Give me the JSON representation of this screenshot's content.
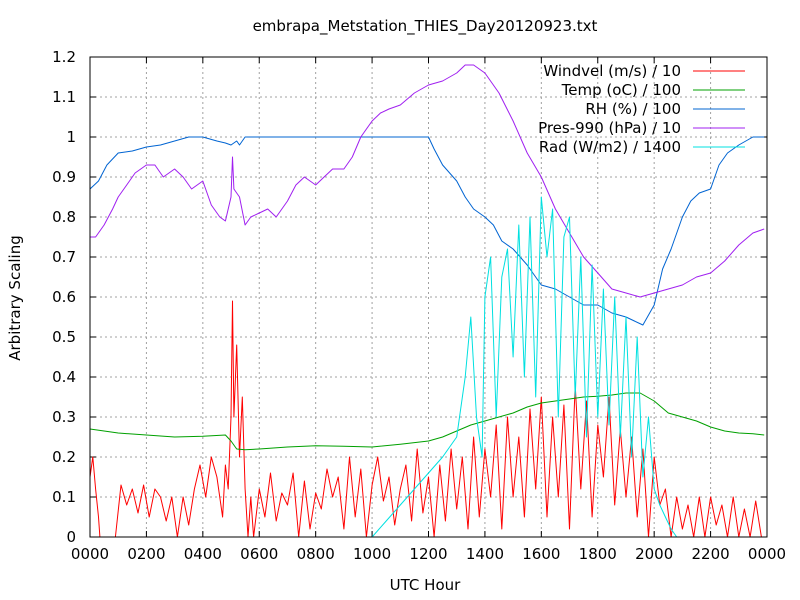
{
  "chart_data": {
    "type": "line",
    "title": "embrapa_Metstation_THIES_Day20120923.txt",
    "xlabel": "UTC Hour",
    "ylabel": "Arbitrary Scaling",
    "xlim": [
      0,
      24
    ],
    "ylim": [
      0,
      1.2
    ],
    "grid": true,
    "legend_position": "top-right",
    "x_ticks": [
      {
        "value": 0,
        "label": "0000"
      },
      {
        "value": 2,
        "label": "0200"
      },
      {
        "value": 4,
        "label": "0400"
      },
      {
        "value": 6,
        "label": "0600"
      },
      {
        "value": 8,
        "label": "0800"
      },
      {
        "value": 10,
        "label": "1000"
      },
      {
        "value": 12,
        "label": "1200"
      },
      {
        "value": 14,
        "label": "1400"
      },
      {
        "value": 16,
        "label": "1600"
      },
      {
        "value": 18,
        "label": "1800"
      },
      {
        "value": 20,
        "label": "2000"
      },
      {
        "value": 22,
        "label": "2200"
      },
      {
        "value": 24,
        "label": "0000"
      }
    ],
    "y_ticks": [
      {
        "value": 0,
        "label": "0"
      },
      {
        "value": 0.1,
        "label": "0.1"
      },
      {
        "value": 0.2,
        "label": "0.2"
      },
      {
        "value": 0.3,
        "label": "0.3"
      },
      {
        "value": 0.4,
        "label": "0.4"
      },
      {
        "value": 0.5,
        "label": "0.5"
      },
      {
        "value": 0.6,
        "label": "0.6"
      },
      {
        "value": 0.7,
        "label": "0.7"
      },
      {
        "value": 0.8,
        "label": "0.8"
      },
      {
        "value": 0.9,
        "label": "0.9"
      },
      {
        "value": 1.0,
        "label": "1"
      },
      {
        "value": 1.1,
        "label": "1.1"
      },
      {
        "value": 1.2,
        "label": "1.2"
      }
    ],
    "series": [
      {
        "name": "Windvel (m/s) / 10",
        "color": "#ff0000",
        "x": [
          0.0,
          0.1,
          0.2,
          0.3,
          0.35,
          0.5,
          0.7,
          0.9,
          1.1,
          1.3,
          1.5,
          1.7,
          1.9,
          2.1,
          2.3,
          2.5,
          2.7,
          2.9,
          3.1,
          3.3,
          3.5,
          3.7,
          3.9,
          4.1,
          4.3,
          4.5,
          4.7,
          4.8,
          4.9,
          5.0,
          5.05,
          5.1,
          5.2,
          5.3,
          5.4,
          5.5,
          5.6,
          5.7,
          5.8,
          6.0,
          6.2,
          6.4,
          6.6,
          6.8,
          7.0,
          7.2,
          7.4,
          7.6,
          7.8,
          8.0,
          8.2,
          8.4,
          8.6,
          8.8,
          9.0,
          9.2,
          9.4,
          9.6,
          9.8,
          10.0,
          10.2,
          10.4,
          10.6,
          10.8,
          11.0,
          11.2,
          11.4,
          11.6,
          11.8,
          12.0,
          12.2,
          12.4,
          12.6,
          12.8,
          13.0,
          13.2,
          13.4,
          13.6,
          13.8,
          14.0,
          14.2,
          14.4,
          14.6,
          14.8,
          15.0,
          15.2,
          15.4,
          15.6,
          15.8,
          16.0,
          16.2,
          16.4,
          16.6,
          16.8,
          17.0,
          17.2,
          17.4,
          17.6,
          17.8,
          18.0,
          18.2,
          18.4,
          18.6,
          18.8,
          19.0,
          19.2,
          19.4,
          19.6,
          19.8,
          20.0,
          20.2,
          20.4,
          20.6,
          20.8,
          21.0,
          21.2,
          21.4,
          21.6,
          21.8,
          22.0,
          22.2,
          22.4,
          22.6,
          22.8,
          23.0,
          23.2,
          23.4,
          23.6,
          23.8,
          23.9
        ],
        "values": [
          0.15,
          0.2,
          0.12,
          0.05,
          0.0,
          0.0,
          0.0,
          0.0,
          0.13,
          0.08,
          0.12,
          0.06,
          0.13,
          0.05,
          0.12,
          0.1,
          0.04,
          0.1,
          0.0,
          0.1,
          0.03,
          0.12,
          0.18,
          0.1,
          0.2,
          0.15,
          0.05,
          0.18,
          0.12,
          0.3,
          0.59,
          0.3,
          0.48,
          0.2,
          0.35,
          0.12,
          0.0,
          0.1,
          0.0,
          0.12,
          0.05,
          0.16,
          0.04,
          0.11,
          0.08,
          0.16,
          0.0,
          0.14,
          0.02,
          0.11,
          0.07,
          0.17,
          0.1,
          0.15,
          0.02,
          0.2,
          0.05,
          0.17,
          0.0,
          0.13,
          0.2,
          0.09,
          0.15,
          0.03,
          0.12,
          0.18,
          0.04,
          0.22,
          0.06,
          0.15,
          0.0,
          0.18,
          0.04,
          0.22,
          0.07,
          0.2,
          0.02,
          0.25,
          0.05,
          0.22,
          0.1,
          0.28,
          0.02,
          0.3,
          0.1,
          0.25,
          0.05,
          0.32,
          0.12,
          0.35,
          0.05,
          0.3,
          0.1,
          0.33,
          0.02,
          0.38,
          0.12,
          0.34,
          0.05,
          0.28,
          0.15,
          0.35,
          0.08,
          0.27,
          0.1,
          0.25,
          0.05,
          0.22,
          0.0,
          0.2,
          0.08,
          0.12,
          0.0,
          0.1,
          0.02,
          0.08,
          0.0,
          0.1,
          0.0,
          0.1,
          0.03,
          0.08,
          0.0,
          0.1,
          0.0,
          0.07,
          0.0,
          0.09,
          0.0,
          0.0
        ]
      },
      {
        "name": "Temp (oC) / 100",
        "color": "#00a000",
        "x": [
          0.0,
          0.5,
          1.0,
          2.0,
          3.0,
          4.0,
          4.8,
          5.0,
          5.2,
          5.5,
          6.0,
          7.0,
          8.0,
          9.0,
          10.0,
          11.0,
          12.0,
          12.5,
          13.0,
          13.5,
          14.0,
          14.5,
          15.0,
          15.5,
          16.0,
          16.5,
          17.0,
          17.5,
          18.0,
          18.5,
          19.0,
          19.5,
          20.0,
          20.5,
          21.0,
          21.5,
          22.0,
          22.5,
          23.0,
          23.5,
          23.9
        ],
        "values": [
          0.27,
          0.265,
          0.26,
          0.255,
          0.25,
          0.252,
          0.255,
          0.24,
          0.22,
          0.218,
          0.22,
          0.225,
          0.228,
          0.227,
          0.225,
          0.232,
          0.24,
          0.25,
          0.265,
          0.28,
          0.29,
          0.3,
          0.31,
          0.325,
          0.335,
          0.34,
          0.345,
          0.35,
          0.352,
          0.355,
          0.36,
          0.36,
          0.34,
          0.31,
          0.3,
          0.29,
          0.275,
          0.265,
          0.26,
          0.258,
          0.255
        ]
      },
      {
        "name": "RH (%) / 100",
        "color": "#0064d2",
        "x": [
          0.0,
          0.3,
          0.6,
          1.0,
          1.5,
          2.0,
          2.5,
          3.0,
          3.5,
          4.0,
          4.5,
          4.8,
          5.0,
          5.2,
          5.3,
          5.5,
          6.0,
          8.0,
          10.0,
          12.0,
          12.2,
          12.5,
          13.0,
          13.3,
          13.6,
          14.0,
          14.3,
          14.6,
          15.0,
          15.5,
          16.0,
          16.5,
          17.0,
          17.5,
          18.0,
          18.5,
          19.0,
          19.3,
          19.6,
          20.0,
          20.3,
          20.6,
          21.0,
          21.3,
          21.6,
          22.0,
          22.3,
          22.6,
          23.0,
          23.5,
          23.9
        ],
        "values": [
          0.87,
          0.89,
          0.93,
          0.96,
          0.965,
          0.975,
          0.98,
          0.99,
          1.0,
          1.0,
          0.99,
          0.985,
          0.98,
          0.99,
          0.98,
          1.0,
          1.0,
          1.0,
          1.0,
          1.0,
          0.97,
          0.93,
          0.89,
          0.85,
          0.82,
          0.8,
          0.78,
          0.74,
          0.72,
          0.68,
          0.63,
          0.62,
          0.6,
          0.58,
          0.58,
          0.56,
          0.55,
          0.54,
          0.53,
          0.58,
          0.67,
          0.72,
          0.8,
          0.84,
          0.86,
          0.87,
          0.93,
          0.96,
          0.98,
          1.0,
          1.0
        ]
      },
      {
        "name": "Pres-990 (hPa) / 10",
        "color": "#a020f0",
        "x": [
          0.0,
          0.2,
          0.5,
          0.8,
          1.0,
          1.3,
          1.6,
          2.0,
          2.3,
          2.6,
          3.0,
          3.3,
          3.6,
          4.0,
          4.3,
          4.6,
          4.8,
          5.0,
          5.05,
          5.1,
          5.3,
          5.5,
          5.7,
          6.0,
          6.3,
          6.6,
          7.0,
          7.3,
          7.6,
          8.0,
          8.3,
          8.6,
          9.0,
          9.3,
          9.6,
          10.0,
          10.3,
          10.6,
          11.0,
          11.5,
          12.0,
          12.5,
          13.0,
          13.3,
          13.6,
          14.0,
          14.5,
          15.0,
          15.5,
          16.0,
          16.5,
          17.0,
          17.5,
          18.0,
          18.5,
          19.0,
          19.5,
          20.0,
          20.5,
          21.0,
          21.5,
          22.0,
          22.5,
          23.0,
          23.5,
          23.9
        ],
        "values": [
          0.75,
          0.75,
          0.78,
          0.82,
          0.85,
          0.88,
          0.91,
          0.93,
          0.93,
          0.9,
          0.92,
          0.9,
          0.87,
          0.89,
          0.83,
          0.8,
          0.79,
          0.85,
          0.95,
          0.87,
          0.85,
          0.78,
          0.8,
          0.81,
          0.82,
          0.8,
          0.84,
          0.88,
          0.9,
          0.88,
          0.9,
          0.92,
          0.92,
          0.95,
          1.0,
          1.04,
          1.06,
          1.07,
          1.08,
          1.11,
          1.13,
          1.14,
          1.16,
          1.18,
          1.18,
          1.16,
          1.11,
          1.04,
          0.96,
          0.9,
          0.82,
          0.76,
          0.7,
          0.66,
          0.62,
          0.61,
          0.6,
          0.61,
          0.62,
          0.63,
          0.65,
          0.66,
          0.69,
          0.73,
          0.76,
          0.77
        ]
      },
      {
        "name": "Rad (W/m2) / 1400",
        "color": "#00e0e0",
        "x": [
          10.0,
          10.5,
          11.0,
          11.5,
          12.0,
          12.5,
          13.0,
          13.3,
          13.5,
          13.7,
          13.9,
          14.0,
          14.2,
          14.4,
          14.6,
          14.8,
          15.0,
          15.2,
          15.4,
          15.6,
          15.8,
          16.0,
          16.2,
          16.4,
          16.6,
          16.8,
          17.0,
          17.2,
          17.4,
          17.6,
          17.8,
          18.0,
          18.2,
          18.4,
          18.6,
          18.8,
          19.0,
          19.2,
          19.4,
          19.6,
          19.8,
          20.0,
          20.2,
          20.4,
          20.6,
          20.8,
          21.0
        ],
        "values": [
          0.0,
          0.04,
          0.08,
          0.12,
          0.16,
          0.2,
          0.25,
          0.4,
          0.55,
          0.3,
          0.2,
          0.6,
          0.7,
          0.3,
          0.65,
          0.72,
          0.45,
          0.78,
          0.4,
          0.8,
          0.35,
          0.85,
          0.7,
          0.82,
          0.3,
          0.75,
          0.8,
          0.35,
          0.7,
          0.25,
          0.68,
          0.3,
          0.62,
          0.28,
          0.6,
          0.25,
          0.55,
          0.2,
          0.5,
          0.15,
          0.3,
          0.12,
          0.08,
          0.05,
          0.02,
          0.0,
          0.0
        ]
      }
    ]
  }
}
